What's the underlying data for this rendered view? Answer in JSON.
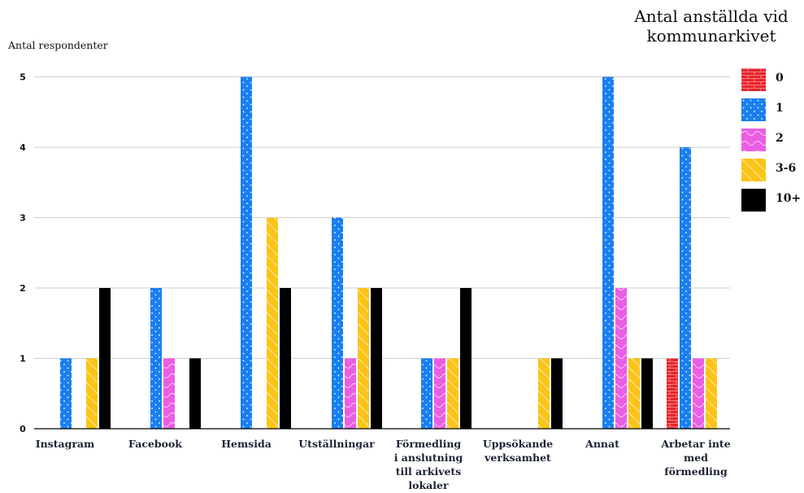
{
  "chart_data": {
    "type": "bar",
    "title": "",
    "ylabel": "Antal respondenter",
    "xlabel": "",
    "ylim": [
      0,
      5
    ],
    "yticks": [
      "0",
      "1",
      "2",
      "3",
      "4",
      "5"
    ],
    "grid": true,
    "legend_title": "Antal anställda vid kommunarkivet",
    "legend_position": "right",
    "categories": [
      "Instagram",
      "Facebook",
      "Hemsida",
      "Utställningar",
      "Förmedling i anslutning till arkivets lokaler",
      "Uppsökande verksamhet",
      "Annat",
      "Arbetar inte med förmedling"
    ],
    "series": [
      {
        "name": "0",
        "color": "#e8242a",
        "pattern": "bricks",
        "values": [
          0,
          0,
          0,
          0,
          0,
          0,
          0,
          1
        ]
      },
      {
        "name": "1",
        "color": "#1a7ff0",
        "pattern": "dots",
        "values": [
          1,
          2,
          5,
          3,
          1,
          0,
          5,
          4
        ]
      },
      {
        "name": "2",
        "color": "#ea5ee3",
        "pattern": "waves",
        "values": [
          0,
          1,
          0,
          1,
          1,
          0,
          2,
          1
        ]
      },
      {
        "name": "3-6",
        "color": "#fbc416",
        "pattern": "diagonal",
        "values": [
          1,
          0,
          3,
          2,
          1,
          1,
          1,
          1
        ]
      },
      {
        "name": "10+",
        "color": "#000000",
        "pattern": "solid",
        "values": [
          2,
          1,
          2,
          2,
          2,
          1,
          1,
          0
        ]
      }
    ]
  }
}
